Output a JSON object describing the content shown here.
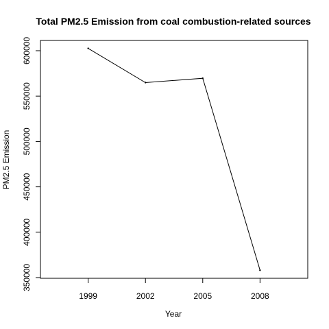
{
  "chart_data": {
    "type": "line",
    "title": "Total PM2.5 Emission from coal combustion-related sources",
    "xlabel": "Year",
    "ylabel": "PM2.5 Emission",
    "x": [
      1999,
      2002,
      2005,
      2008
    ],
    "series": [
      {
        "values": [
          602600,
          564900,
          569600,
          358100
        ]
      }
    ],
    "xlim": [
      1996.5,
      2010.5
    ],
    "ylim": [
      350000,
      612000
    ],
    "xticks": [
      1999,
      2002,
      2005,
      2008
    ],
    "yticks": [
      350000,
      400000,
      450000,
      500000,
      550000,
      600000
    ],
    "xtick_labels": [
      "1999",
      "2002",
      "2005",
      "2008"
    ],
    "ytick_labels": [
      "350000",
      "400000",
      "450000",
      "500000",
      "550000",
      "600000"
    ],
    "grid": false,
    "line_color": "#000000"
  }
}
